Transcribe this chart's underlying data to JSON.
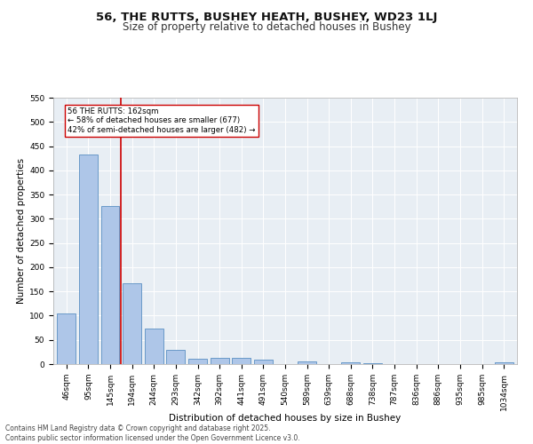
{
  "title_line1": "56, THE RUTTS, BUSHEY HEATH, BUSHEY, WD23 1LJ",
  "title_line2": "Size of property relative to detached houses in Bushey",
  "xlabel": "Distribution of detached houses by size in Bushey",
  "ylabel": "Number of detached properties",
  "bar_labels": [
    "46sqm",
    "95sqm",
    "145sqm",
    "194sqm",
    "244sqm",
    "293sqm",
    "342sqm",
    "392sqm",
    "441sqm",
    "491sqm",
    "540sqm",
    "589sqm",
    "639sqm",
    "688sqm",
    "738sqm",
    "787sqm",
    "836sqm",
    "886sqm",
    "935sqm",
    "985sqm",
    "1034sqm"
  ],
  "bar_values": [
    105,
    432,
    327,
    166,
    74,
    29,
    11,
    13,
    13,
    9,
    0,
    5,
    0,
    3,
    1,
    0,
    0,
    0,
    0,
    0,
    4
  ],
  "bar_color": "#aec6e8",
  "bar_edge_color": "#5a8fc2",
  "vline_x": 2.5,
  "vline_color": "#cc0000",
  "annotation_text": "56 THE RUTTS: 162sqm\n← 58% of detached houses are smaller (677)\n42% of semi-detached houses are larger (482) →",
  "ylim": [
    0,
    550
  ],
  "yticks": [
    0,
    50,
    100,
    150,
    200,
    250,
    300,
    350,
    400,
    450,
    500,
    550
  ],
  "bg_color": "#e8eef4",
  "footer_line1": "Contains HM Land Registry data © Crown copyright and database right 2025.",
  "footer_line2": "Contains public sector information licensed under the Open Government Licence v3.0.",
  "title_fontsize": 9.5,
  "subtitle_fontsize": 8.5,
  "axis_fontsize": 7.5,
  "tick_fontsize": 6.5,
  "footer_fontsize": 5.5
}
